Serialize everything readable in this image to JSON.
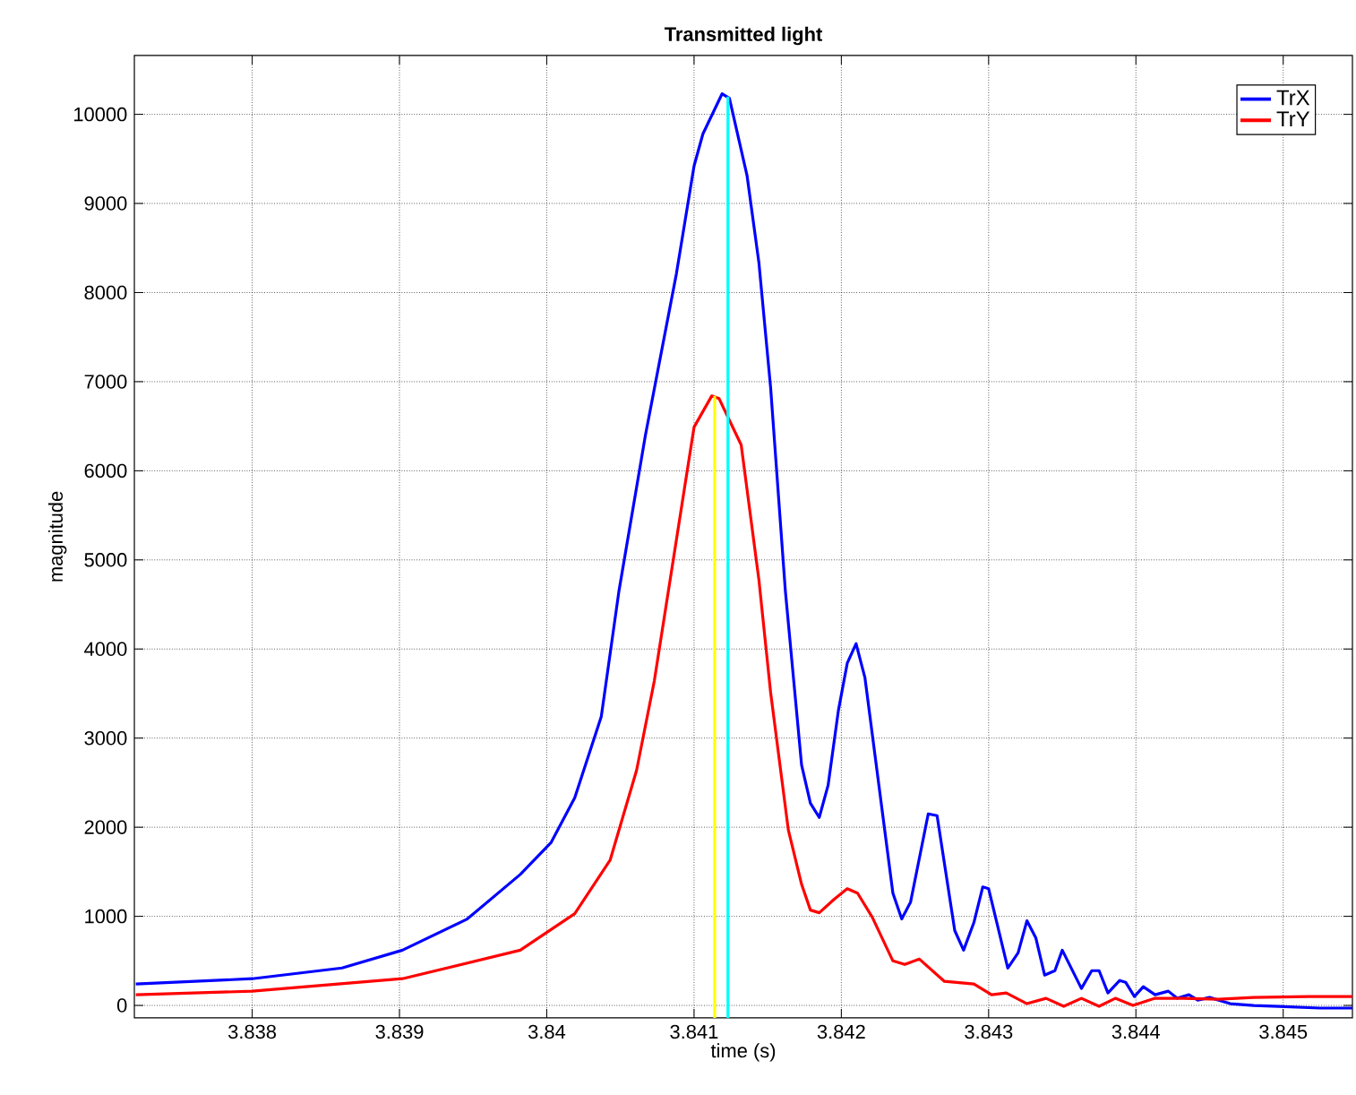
{
  "chart_data": {
    "type": "line",
    "title": "Transmitted light",
    "xlabel": "time (s)",
    "ylabel": "magnitude",
    "xlim": [
      3.8372,
      3.84547
    ],
    "ylim": [
      -140,
      10660
    ],
    "xticks": [
      3.838,
      3.839,
      3.84,
      3.841,
      3.842,
      3.843,
      3.844,
      3.845
    ],
    "yticks": [
      0,
      1000,
      2000,
      3000,
      4000,
      5000,
      6000,
      7000,
      8000,
      9000,
      10000
    ],
    "grid": true,
    "legend": "top right",
    "marker": "none",
    "line_style": "solid",
    "series": [
      {
        "name": "TrX",
        "color": "#0000ff",
        "x": [
          3.83721,
          3.838,
          3.83861,
          3.83902,
          3.83946,
          3.83982,
          3.84003,
          3.84019,
          3.84037,
          3.84049,
          3.84067,
          3.84088,
          3.841,
          3.84106,
          3.84119,
          3.84124,
          3.84136,
          3.84144,
          3.84152,
          3.84162,
          3.84173,
          3.84179,
          3.84185,
          3.84191,
          3.84198,
          3.84204,
          3.8421,
          3.84216,
          3.84235,
          3.84241,
          3.84247,
          3.84259,
          3.84265,
          3.84277,
          3.84283,
          3.8429,
          3.84296,
          3.843,
          3.84313,
          3.8432,
          3.84326,
          3.84332,
          3.84338,
          3.84345,
          3.8435,
          3.84363,
          3.8437,
          3.84375,
          3.84381,
          3.84389,
          3.84393,
          3.84399,
          3.84405,
          3.84413,
          3.84422,
          3.84428,
          3.84436,
          3.84442,
          3.8445,
          3.84464,
          3.8448,
          3.84497,
          3.84525,
          3.84547
        ],
        "values": [
          240,
          300,
          420,
          620,
          970,
          1470,
          1830,
          2330,
          3240,
          4650,
          6400,
          8210,
          9420,
          9780,
          10230,
          10180,
          9310,
          8340,
          6930,
          4650,
          2700,
          2270,
          2110,
          2470,
          3310,
          3840,
          4060,
          3680,
          1260,
          970,
          1160,
          2150,
          2130,
          840,
          620,
          930,
          1330,
          1310,
          420,
          590,
          950,
          760,
          340,
          390,
          620,
          190,
          390,
          390,
          140,
          280,
          260,
          100,
          210,
          120,
          160,
          80,
          120,
          60,
          90,
          20,
          0,
          -10,
          -30,
          -30
        ]
      },
      {
        "name": "TrY",
        "color": "#ff0000",
        "x": [
          3.83721,
          3.838,
          3.83902,
          3.83982,
          3.84019,
          3.84043,
          3.84061,
          3.84073,
          3.841,
          3.84112,
          3.84117,
          3.84132,
          3.84144,
          3.84152,
          3.84164,
          3.84173,
          3.84179,
          3.84185,
          3.84195,
          3.84204,
          3.84211,
          3.84221,
          3.84235,
          3.84243,
          3.84253,
          3.8427,
          3.8429,
          3.84302,
          3.84312,
          3.84326,
          3.84339,
          3.84351,
          3.84363,
          3.84375,
          3.84386,
          3.84398,
          3.84413,
          3.84432,
          3.84456,
          3.8448,
          3.84517,
          3.84547
        ],
        "values": [
          120,
          160,
          300,
          620,
          1030,
          1630,
          2640,
          3640,
          6490,
          6840,
          6810,
          6290,
          4780,
          3510,
          1970,
          1360,
          1070,
          1040,
          1190,
          1310,
          1260,
          990,
          500,
          460,
          520,
          270,
          240,
          120,
          140,
          20,
          80,
          -10,
          80,
          -10,
          80,
          0,
          80,
          80,
          70,
          90,
          100,
          100
        ]
      },
      {
        "color": "#ffff00",
        "x": [
          3.84114,
          3.84114
        ],
        "values": [
          -140,
          6840
        ]
      },
      {
        "color": "#00ffff",
        "x": [
          3.84123,
          3.84123
        ],
        "values": [
          -140,
          10200
        ]
      }
    ]
  }
}
